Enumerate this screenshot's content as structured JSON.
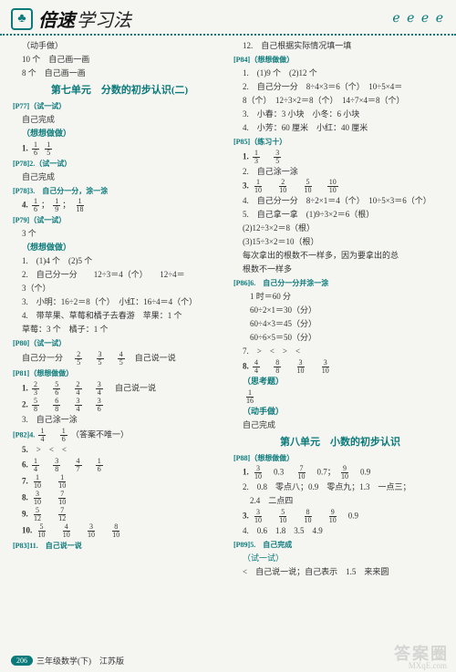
{
  "header": {
    "brand": "倍速",
    "suffix": "学习法"
  },
  "left": {
    "pre": [
      "（动手做）",
      "10 个　自己画一画",
      "8 个　自己画一画"
    ],
    "unit7": "第七单元　分数的初步认识(二)",
    "p77": {
      "label": "[P77]（试一试）",
      "body": [
        "自己完成",
        "（想想做做）"
      ]
    },
    "p78_2": {
      "label": "[P78]2.（试一试）",
      "body": [
        "自己完成"
      ]
    },
    "p78_3": {
      "label": "[P78]3.　自己分一分，涂一涂"
    },
    "p79": {
      "label": "[P79]（试一试）",
      "body": [
        "3 个",
        "（想想做做）",
        "1.　(1)4 个　(2)5 个",
        "2.　自己分一分　　12÷3＝4（个）　　12÷4＝",
        "3（个）",
        "3.　小明：16÷2＝8（个）　小红：16÷4＝4（个）",
        "4.　带苹果、草莓和橘子去春游　苹果：1 个",
        "草莓：3 个　橘子：1 个"
      ]
    },
    "p80": {
      "label": "[P80]（试一试）"
    },
    "p81": {
      "label": "[P81]（想想做做）",
      "lines": [
        "　自己说一说",
        "3.　自己涂一涂"
      ]
    },
    "p82_4": {
      "label": "[P82]4.",
      "note": "（答案不唯一）"
    },
    "p83_11": {
      "label": "[P83]11.　自己说一说"
    }
  },
  "right": {
    "top": "12.　自己根据实际情况填一填",
    "p84": {
      "label": "[P84]（想想做做）",
      "lines": [
        "1.　(1)9 个　(2)12 个",
        "2.　自己分一分　8÷4×3＝6（个）　10÷5×4＝",
        "8（个）　12÷3×2＝8（个）　14÷7×4＝8（个）",
        "3.　小春：3 小块　小冬：6 小块",
        "4.　小芳：60 厘米　小红：40 厘米"
      ]
    },
    "p85": {
      "label": "[P85]（练习十）",
      "lines2": "2.　自己涂一涂",
      "lines4": "4.　自己分一分　8÷2×1＝4（个）　10÷5×3＝6（个）",
      "lines5a": "5.　自己拿一拿　(1)9÷3×2＝6（根）",
      "lines5b": "(2)12÷3×2＝8（根）",
      "lines5c": "(3)15÷3×2＝10（根）",
      "lines5d": "每次拿出的根数不一样多，因为要拿出的总",
      "lines5e": "根数不一样多"
    },
    "p86_6": {
      "label": "[P86]6.　自己分一分并涂一涂",
      "lines": [
        "1 时＝60 分",
        "60÷2×1＝30（分）",
        "60÷4×3＝45（分）",
        "60÷6×5＝50（分）"
      ],
      "l7": "7.　>　<　>　<"
    },
    "thinking": "（思考题）",
    "hands": "（动手做）",
    "hands_body": "自己完成",
    "unit8": "第八单元　小数的初步认识",
    "p88": {
      "label": "[P88]（想想做做）",
      "l2": "2.　0.8　零点八；0.9　零点九；1.3　一点三；",
      "l2b": "2.4　二点四"
    },
    "p89_4": "4.　0.6　1.8　3.5　4.9",
    "p89_5": "[P89]5.　自己完成",
    "p89_try": "（试一试）",
    "p89_try_body": "<　自己说一说；自己表示　1.5　来来圆"
  },
  "footer": {
    "page": "206",
    "text": "三年级数学(下)　江苏版"
  }
}
